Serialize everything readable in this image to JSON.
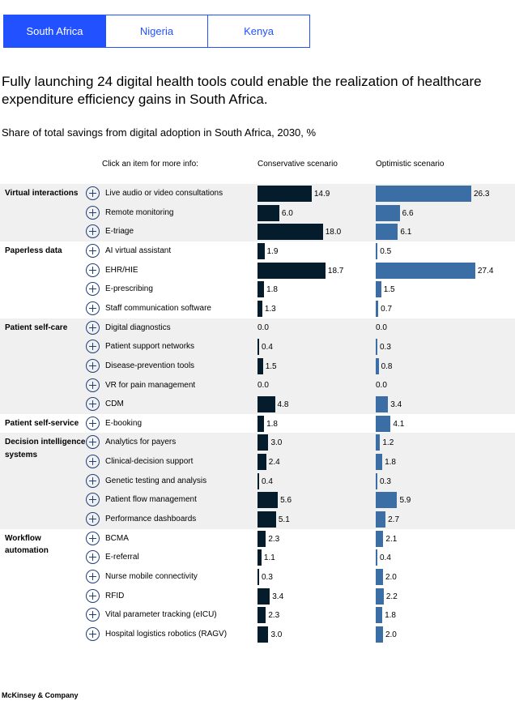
{
  "tabs": [
    "South Africa",
    "Nigeria",
    "Kenya"
  ],
  "active_tab": 0,
  "headline": "Fully launching 24 digital health tools could enable the realization of healthcare expenditure efficiency gains in South Africa.",
  "chart_data": {
    "type": "bar",
    "title": "Share of total savings from digital adoption in South Africa, 2030, %",
    "column_header": "Click an item for more info:",
    "series_names": [
      "Conservative scenario",
      "Optimistic scenario"
    ],
    "colors": {
      "conservative": "#051c2c",
      "optimistic": "#3a6ea5",
      "accent": "#2251ff"
    },
    "groups": [
      {
        "name": "Virtual interactions",
        "items": [
          {
            "label": "Live audio or video consultations",
            "conservative": 14.9,
            "optimistic": 26.3
          },
          {
            "label": "Remote monitoring",
            "conservative": 6.0,
            "optimistic": 6.6
          },
          {
            "label": "E-triage",
            "conservative": 18.0,
            "optimistic": 6.1
          }
        ]
      },
      {
        "name": "Paperless data",
        "items": [
          {
            "label": "AI virtual assistant",
            "conservative": 1.9,
            "optimistic": 0.5
          },
          {
            "label": "EHR/HIE",
            "conservative": 18.7,
            "optimistic": 27.4
          },
          {
            "label": "E-prescribing",
            "conservative": 1.8,
            "optimistic": 1.5
          },
          {
            "label": "Staff communication software",
            "conservative": 1.3,
            "optimistic": 0.7
          }
        ]
      },
      {
        "name": "Patient self-care",
        "items": [
          {
            "label": "Digital diagnostics",
            "conservative": 0.0,
            "optimistic": 0.0
          },
          {
            "label": "Patient support networks",
            "conservative": 0.4,
            "optimistic": 0.3
          },
          {
            "label": "Disease-prevention tools",
            "conservative": 1.5,
            "optimistic": 0.8
          },
          {
            "label": "VR for pain management",
            "conservative": 0.0,
            "optimistic": 0.0
          },
          {
            "label": "CDM",
            "conservative": 4.8,
            "optimistic": 3.4
          }
        ]
      },
      {
        "name": "Patient self-service",
        "items": [
          {
            "label": "E-booking",
            "conservative": 1.8,
            "optimistic": 4.1
          }
        ]
      },
      {
        "name": "Decision intelligence systems",
        "items": [
          {
            "label": "Analytics for payers",
            "conservative": 3.0,
            "optimistic": 1.2
          },
          {
            "label": "Clinical-decision support",
            "conservative": 2.4,
            "optimistic": 1.8
          },
          {
            "label": "Genetic testing and analysis",
            "conservative": 0.4,
            "optimistic": 0.3
          },
          {
            "label": "Patient flow management",
            "conservative": 5.6,
            "optimistic": 5.9
          },
          {
            "label": "Performance dashboards",
            "conservative": 5.1,
            "optimistic": 2.7
          }
        ]
      },
      {
        "name": "Workflow automation",
        "items": [
          {
            "label": "BCMA",
            "conservative": 2.3,
            "optimistic": 2.1
          },
          {
            "label": "E-referral",
            "conservative": 1.1,
            "optimistic": 0.4
          },
          {
            "label": "Nurse mobile connectivity",
            "conservative": 0.3,
            "optimistic": 2.0
          },
          {
            "label": "RFID",
            "conservative": 3.4,
            "optimistic": 2.2
          },
          {
            "label": "Vital parameter tracking (eICU)",
            "conservative": 2.3,
            "optimistic": 1.8
          },
          {
            "label": "Hospital logistics robotics (RAGV)",
            "conservative": 3.0,
            "optimistic": 2.0
          }
        ]
      }
    ]
  },
  "footer": "McKinsey & Company"
}
